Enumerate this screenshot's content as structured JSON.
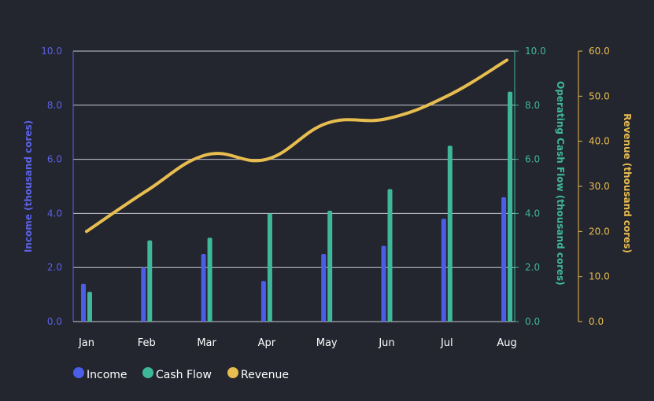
{
  "chart_data": {
    "type": "bar",
    "categories": [
      "Jan",
      "Feb",
      "Mar",
      "Apr",
      "May",
      "Jun",
      "Jul",
      "Aug"
    ],
    "series": [
      {
        "name": "Income",
        "type": "bar",
        "axis": "left",
        "color": "#4b5ee6",
        "values": [
          1.4,
          2.0,
          2.5,
          1.5,
          2.5,
          2.8,
          3.8,
          4.6
        ]
      },
      {
        "name": "Cash Flow",
        "type": "bar",
        "axis": "right1",
        "color": "#3fb89a",
        "values": [
          1.1,
          3.0,
          3.1,
          4.0,
          4.1,
          4.9,
          6.5,
          8.5
        ]
      },
      {
        "name": "Revenue",
        "type": "line",
        "axis": "right2",
        "color": "#e8bd4f",
        "values": [
          20.0,
          29.0,
          37.0,
          36.0,
          44.0,
          45.0,
          50.0,
          58.0
        ]
      }
    ],
    "axes": {
      "left": {
        "label": "Income (thousand cores)",
        "min": 0,
        "max": 10,
        "ticks": [
          "0.0",
          "2.0",
          "4.0",
          "6.0",
          "8.0",
          "10.0"
        ],
        "color": "#5b63e6"
      },
      "right1": {
        "label": "Operating Cash Flow (thousand cores)",
        "min": 0,
        "max": 10,
        "ticks": [
          "0.0",
          "2.0",
          "4.0",
          "6.0",
          "8.0",
          "10.0"
        ],
        "color": "#3fb89a"
      },
      "right2": {
        "label": "Revenue (thousand cores)",
        "min": 0,
        "max": 60,
        "ticks": [
          "0.0",
          "10.0",
          "20.0",
          "30.0",
          "40.0",
          "50.0",
          "60.0"
        ],
        "color": "#e8bd4f"
      }
    },
    "grid": true,
    "legend_position": "bottom-left"
  }
}
